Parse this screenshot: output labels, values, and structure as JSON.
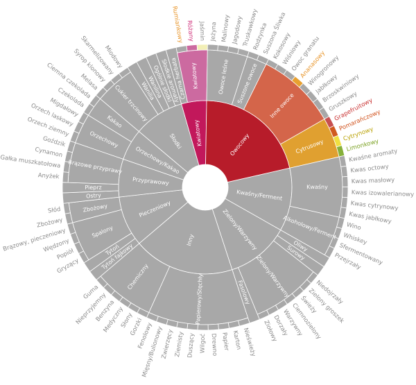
{
  "chart_data": {
    "type": "sunburst",
    "default_color": "#a8a8a8",
    "default_label_color": "#8a8a8a",
    "inner_label_color": "#ffffff",
    "children": [
      {
        "name": "Kwiatowy",
        "color": "#c2185b",
        "children": [
          {
            "name": "Czarna herbata",
            "value": 1
          },
          {
            "name": "Kwiatowy",
            "color": "#cc6aa0",
            "children": [
              {
                "name": "Rumiankowy",
                "value": 1,
                "label_color": "#e8952a"
              },
              {
                "name": "Różany",
                "value": 1,
                "color": "#cc6aa0",
                "label_color": "#d0307a"
              },
              {
                "name": "Jaśmin",
                "value": 1,
                "color": "#f2efb6"
              }
            ]
          }
        ]
      },
      {
        "name": "Owocowy",
        "color": "#b71c2a",
        "children": [
          {
            "name": "Owoce leśne",
            "children": [
              {
                "name": "Jeżyna",
                "value": 1
              },
              {
                "name": "Malinowy",
                "value": 1
              },
              {
                "name": "Jagodowy",
                "value": 1
              },
              {
                "name": "Truskawkowy",
                "value": 1
              }
            ]
          },
          {
            "name": "Suszone owoce",
            "children": [
              {
                "name": "Rodzynka",
                "value": 1
              },
              {
                "name": "Suszona Śliwka",
                "value": 1
              }
            ]
          },
          {
            "name": "Inne owoce",
            "color": "#d4654a",
            "children": [
              {
                "name": "Kokosowy",
                "value": 1
              },
              {
                "name": "Wiśniowy",
                "value": 1
              },
              {
                "name": "Owoc granatu",
                "value": 1
              },
              {
                "name": "Ananasowy",
                "value": 1,
                "color": "#e8a030",
                "label_color": "#e8952a"
              },
              {
                "name": "Winogronowy",
                "value": 1
              },
              {
                "name": "Jabłkowy",
                "value": 1
              },
              {
                "name": "Brzoskwiniowy",
                "value": 1
              },
              {
                "name": "Gruszkowy",
                "value": 1
              }
            ]
          },
          {
            "name": "Cytrusowy",
            "color": "#e0a030",
            "children": [
              {
                "name": "Grapefruitowy",
                "value": 1,
                "color": "#c85050",
                "label_color": "#c83030"
              },
              {
                "name": "Pomarańczowy",
                "value": 1,
                "color": "#d05a20",
                "label_color": "#d0501a"
              },
              {
                "name": "Cytrynowy",
                "value": 1,
                "color": "#f0e040",
                "label_color": "#b8a000"
              },
              {
                "name": "Limonkowy",
                "value": 1,
                "color": "#86b03a",
                "label_color": "#7aa020"
              }
            ]
          }
        ]
      },
      {
        "name": "Kwaśny/Ferment",
        "children": [
          {
            "name": "Kwaśny",
            "children": [
              {
                "name": "Kwaśne aromaty",
                "value": 1
              },
              {
                "name": "Kwas octowy",
                "value": 1
              },
              {
                "name": "Kwas masłowy",
                "value": 1
              },
              {
                "name": "Kwas izowalerianowy",
                "value": 1
              },
              {
                "name": "Kwas cytrynowy",
                "value": 1
              },
              {
                "name": "Kwas jabłkowy",
                "value": 1
              }
            ]
          },
          {
            "name": "Alkoholowy/Ferment",
            "children": [
              {
                "name": "Wino",
                "value": 1
              },
              {
                "name": "Whiskey",
                "value": 1
              },
              {
                "name": "Sfermentowany",
                "value": 1
              },
              {
                "name": "Przejrzały",
                "value": 1
              }
            ]
          }
        ]
      },
      {
        "name": "Zielony/Warzywny",
        "children": [
          {
            "name": "Oliwy",
            "value": 1
          },
          {
            "name": "Surowy",
            "value": 1
          },
          {
            "name": "Zielony/Warzywny",
            "children": [
              {
                "name": "Niedojrzały",
                "value": 1
              },
              {
                "name": "Zielony groszek",
                "value": 1
              },
              {
                "name": "Świeży",
                "value": 1
              },
              {
                "name": "Ciemnozielony",
                "value": 1
              },
              {
                "name": "Warzywny",
                "value": 1
              },
              {
                "name": "Dorzały",
                "value": 1
              },
              {
                "name": "Ziołowy",
                "value": 1
              }
            ]
          },
          {
            "name": "Fasolowy",
            "value": 1
          }
        ]
      },
      {
        "name": "Inny",
        "children": [
          {
            "name": "Papierowy/Stęchły",
            "children": [
              {
                "name": "Nieświeży",
                "value": 1
              },
              {
                "name": "Karton",
                "value": 1
              },
              {
                "name": "Papier",
                "value": 1
              },
              {
                "name": "Drewno",
                "value": 1
              },
              {
                "name": "Wilgoć",
                "value": 1
              },
              {
                "name": "Duszący",
                "value": 1
              },
              {
                "name": "Ziemisty",
                "value": 1
              },
              {
                "name": "Zwierzęcy",
                "value": 1
              },
              {
                "name": "Mięsny/Bulionowy",
                "value": 1
              },
              {
                "name": "Fenolowy",
                "value": 1
              }
            ]
          },
          {
            "name": "Chemiczny",
            "children": [
              {
                "name": "Gorzki",
                "value": 1
              },
              {
                "name": "Słony",
                "value": 1
              },
              {
                "name": "Medyczny",
                "value": 1
              },
              {
                "name": "Benzyna",
                "value": 1
              },
              {
                "name": "Nieprzyjemny",
                "value": 1
              },
              {
                "name": "Guma",
                "value": 1
              }
            ]
          }
        ]
      },
      {
        "name": "Pieczeniowy",
        "children": [
          {
            "name": "Tytoń fajkowy",
            "value": 1
          },
          {
            "name": "Tytoń",
            "value": 1
          },
          {
            "name": "Spalony",
            "children": [
              {
                "name": "Gryzący",
                "value": 1
              },
              {
                "name": "Popiół",
                "value": 1
              },
              {
                "name": "Wędzony",
                "value": 1
              },
              {
                "name": "Brązowy, pieczeniowy",
                "value": 1
              }
            ]
          },
          {
            "name": "Zbożowy",
            "children": [
              {
                "name": "Zbożowy",
                "value": 1
              },
              {
                "name": "Słód",
                "value": 1
              }
            ]
          }
        ]
      },
      {
        "name": "Przyprawowy",
        "children": [
          {
            "name": "Ostry",
            "value": 1
          },
          {
            "name": "Pieprz",
            "value": 1
          },
          {
            "name": "Brązowe przyprawy",
            "children": [
              {
                "name": "Anyżek",
                "value": 1
              },
              {
                "name": "Gałka muszkatołowa",
                "value": 1
              },
              {
                "name": "Cynamon",
                "value": 1
              },
              {
                "name": "Goździk",
                "value": 1
              }
            ]
          }
        ]
      },
      {
        "name": "Orzechowy/Kakao",
        "children": [
          {
            "name": "Orzechowy",
            "children": [
              {
                "name": "Orzech ziemny",
                "value": 1
              },
              {
                "name": "Orzech laskowy",
                "value": 1
              },
              {
                "name": "Migdałowy",
                "value": 1
              }
            ]
          },
          {
            "name": "Kakao",
            "children": [
              {
                "name": "Czekolada",
                "value": 1
              },
              {
                "name": "Ciemna czekolada",
                "value": 1
              }
            ]
          }
        ]
      },
      {
        "name": "Słodki",
        "children": [
          {
            "name": "Cukier trzcinowy",
            "children": [
              {
                "name": "Melasa",
                "value": 1
              },
              {
                "name": "Syrop klonowy",
                "value": 1
              },
              {
                "name": "Skarmelizowany",
                "value": 1
              },
              {
                "name": "Miodowy",
                "value": 1
              }
            ]
          },
          {
            "name": "Wanilia",
            "value": 1
          },
          {
            "name": "Wanilina",
            "value": 1
          },
          {
            "name": "Ogólnie słodki",
            "value": 1
          },
          {
            "name": "Słodkie aromaty",
            "value": 1
          }
        ]
      }
    ]
  }
}
